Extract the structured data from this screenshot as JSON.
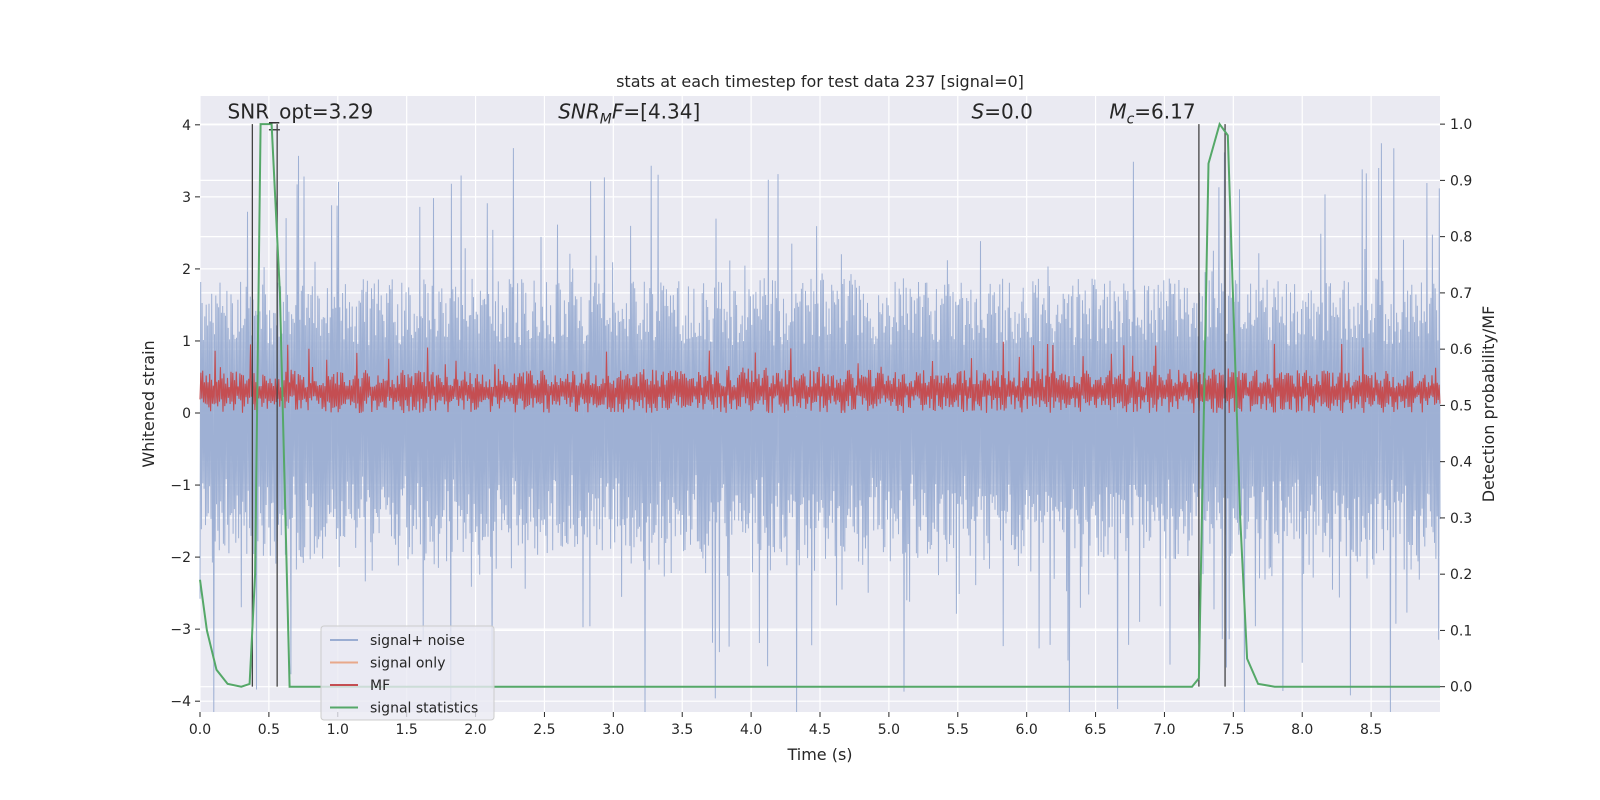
{
  "chart_data": {
    "type": "line",
    "title": "stats at each timestep for test data 237 [signal=0]",
    "xlabel": "Time (s)",
    "ylabel": "Whitened strain",
    "y2label": "Detection probability/MF",
    "xlim": [
      0.0,
      9.0
    ],
    "ylim": [
      -4.15,
      4.4
    ],
    "y2lim": [
      -0.045,
      1.05
    ],
    "xticks": [
      "0.0",
      "0.5",
      "1.0",
      "1.5",
      "2.0",
      "2.5",
      "3.0",
      "3.5",
      "4.0",
      "4.5",
      "5.0",
      "5.5",
      "6.0",
      "6.5",
      "7.0",
      "7.5",
      "8.0",
      "8.5"
    ],
    "xtick_values": [
      0,
      0.5,
      1,
      1.5,
      2,
      2.5,
      3,
      3.5,
      4,
      4.5,
      5,
      5.5,
      6,
      6.5,
      7,
      7.5,
      8,
      8.5
    ],
    "yticks": [
      "4",
      "3",
      "2",
      "1",
      "0",
      "−1",
      "−2",
      "−3",
      "−4"
    ],
    "ytick_values": [
      4,
      3,
      2,
      1,
      0,
      -1,
      -2,
      -3,
      -4
    ],
    "y2ticks": [
      "1.0",
      "0.9",
      "0.8",
      "0.7",
      "0.6",
      "0.5",
      "0.4",
      "0.3",
      "0.2",
      "0.1",
      "0.0"
    ],
    "y2tick_values": [
      1.0,
      0.9,
      0.8,
      0.7,
      0.6,
      0.5,
      0.4,
      0.3,
      0.2,
      0.1,
      0.0
    ],
    "grid": true,
    "legend_position": "lower-left",
    "annotations": [
      {
        "text": "SNR_opt=3.29",
        "x": 0.2,
        "y": 4.1
      },
      {
        "text": "SNR_MF=[4.34]",
        "x": 2.6,
        "y": 4.1
      },
      {
        "text": "S=0.0",
        "x": 5.6,
        "y": 4.1
      },
      {
        "text": "M_c=6.17",
        "x": 6.6,
        "y": 4.1
      }
    ],
    "vertical_lines_y2": [
      0.38,
      0.56,
      7.25,
      7.44
    ],
    "series": [
      {
        "name": "signal+ noise",
        "color": "#9aadd2",
        "axis": "y",
        "style": "noise",
        "amplitude_typical": 1.7,
        "amplitude_peak": 4.0
      },
      {
        "name": "signal only",
        "color": "#e8a88a",
        "axis": "y",
        "style": "line",
        "points": []
      },
      {
        "name": "MF",
        "color": "#c44e52",
        "axis": "y",
        "style": "band",
        "band": [
          0.0,
          1.0
        ],
        "typical_top": 0.6
      },
      {
        "name": "signal statistics",
        "color": "#55a868",
        "axis": "y2",
        "style": "line",
        "points": [
          [
            0.0,
            0.19
          ],
          [
            0.05,
            0.1
          ],
          [
            0.12,
            0.03
          ],
          [
            0.2,
            0.005
          ],
          [
            0.3,
            0.0
          ],
          [
            0.36,
            0.005
          ],
          [
            0.4,
            0.2
          ],
          [
            0.44,
            1.0
          ],
          [
            0.52,
            1.0
          ],
          [
            0.58,
            0.7
          ],
          [
            0.65,
            0.0
          ],
          [
            7.2,
            0.0
          ],
          [
            7.25,
            0.015
          ],
          [
            7.32,
            0.93
          ],
          [
            7.4,
            1.0
          ],
          [
            7.46,
            0.98
          ],
          [
            7.55,
            0.3
          ],
          [
            7.6,
            0.05
          ],
          [
            7.68,
            0.005
          ],
          [
            7.8,
            0.0
          ],
          [
            9.0,
            0.0
          ]
        ]
      }
    ]
  }
}
